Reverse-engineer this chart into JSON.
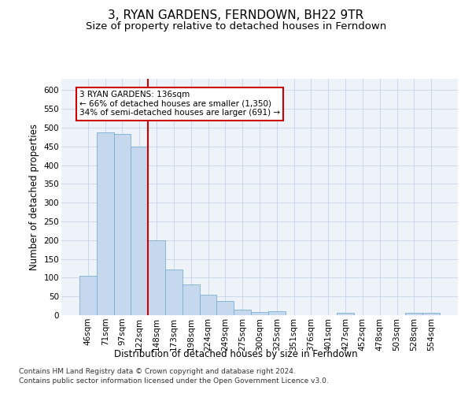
{
  "title": "3, RYAN GARDENS, FERNDOWN, BH22 9TR",
  "subtitle": "Size of property relative to detached houses in Ferndown",
  "xlabel": "Distribution of detached houses by size in Ferndown",
  "ylabel": "Number of detached properties",
  "categories": [
    "46sqm",
    "71sqm",
    "97sqm",
    "122sqm",
    "148sqm",
    "173sqm",
    "198sqm",
    "224sqm",
    "249sqm",
    "275sqm",
    "300sqm",
    "325sqm",
    "351sqm",
    "376sqm",
    "401sqm",
    "427sqm",
    "452sqm",
    "478sqm",
    "503sqm",
    "528sqm",
    "554sqm"
  ],
  "values": [
    105,
    488,
    483,
    450,
    200,
    122,
    82,
    55,
    38,
    15,
    8,
    10,
    1,
    1,
    1,
    6,
    0,
    0,
    0,
    6,
    6
  ],
  "bar_color": "#c5d8ed",
  "bar_edge_color": "#7aafd4",
  "vline_x": 3.5,
  "vline_color": "#cc0000",
  "annotation_lines": [
    "3 RYAN GARDENS: 136sqm",
    "← 66% of detached houses are smaller (1,350)",
    "34% of semi-detached houses are larger (691) →"
  ],
  "annotation_box_color": "#cc0000",
  "ylim": [
    0,
    630
  ],
  "yticks": [
    0,
    50,
    100,
    150,
    200,
    250,
    300,
    350,
    400,
    450,
    500,
    550,
    600
  ],
  "footer_line1": "Contains HM Land Registry data © Crown copyright and database right 2024.",
  "footer_line2": "Contains public sector information licensed under the Open Government Licence v3.0.",
  "title_fontsize": 11,
  "subtitle_fontsize": 9.5,
  "axis_label_fontsize": 8.5,
  "tick_fontsize": 7.5,
  "annotation_fontsize": 7.5,
  "footer_fontsize": 6.5,
  "bg_color": "#eef2f9",
  "grid_color": "#c8d4e8",
  "fig_width": 6.0,
  "fig_height": 5.0
}
